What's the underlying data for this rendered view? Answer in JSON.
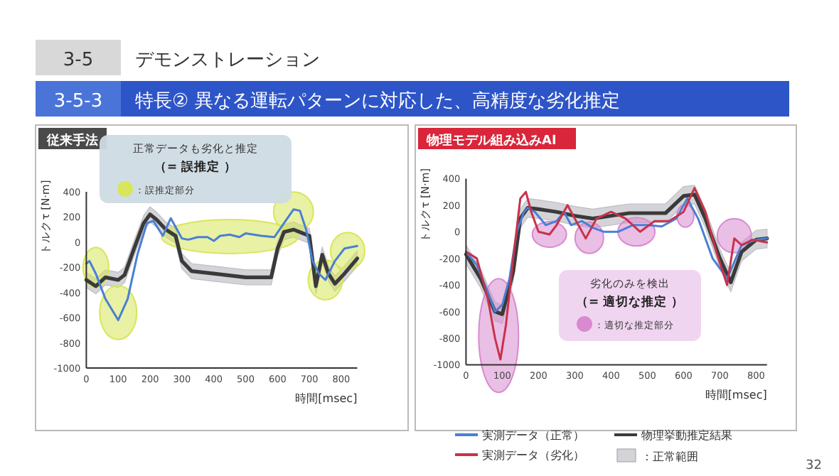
{
  "chart_data": [
    {
      "type": "other",
      "title": "デモンストレーション",
      "subtitle": "特長② 異なる運転パターンに対応した、高精度な劣化推定",
      "annotations": [
        "3-5",
        "3-5-3",
        "32"
      ]
    },
    {
      "type": "line",
      "title": "従来手法",
      "xlabel": "時間[msec]",
      "ylabel": "トルクτ [N·m]",
      "xlim": [
        0,
        850
      ],
      "xticks": [
        0,
        100,
        200,
        300,
        400,
        500,
        600,
        700,
        800
      ],
      "ylim": [
        -1000,
        400
      ],
      "yticks": [
        -1000,
        -800,
        -600,
        -400,
        -200,
        0,
        200,
        400
      ],
      "legend": false,
      "annotations": [
        "正常データも劣化と推定",
        "（= 誤推定 ）",
        "：誤推定部分"
      ],
      "series": [
        {
          "color": "#3a3a3a",
          "x": [
            0,
            30,
            60,
            100,
            120,
            150,
            180,
            200,
            220,
            250,
            280,
            300,
            330,
            400,
            500,
            580,
            600,
            620,
            650,
            700,
            720,
            740,
            760,
            780,
            810,
            850
          ],
          "values": [
            -300,
            -350,
            -280,
            -300,
            -260,
            -50,
            150,
            220,
            180,
            100,
            50,
            -150,
            -230,
            -250,
            -280,
            -280,
            -50,
            80,
            100,
            50,
            -350,
            -100,
            -250,
            -330,
            -250,
            -130
          ],
          "lower": [
            -360,
            -410,
            -340,
            -360,
            -320,
            -110,
            90,
            160,
            120,
            40,
            -10,
            -210,
            -290,
            -310,
            -340,
            -340,
            -110,
            20,
            40,
            -10,
            -410,
            -160,
            -310,
            -390,
            -310,
            -190
          ],
          "upper": [
            -240,
            -290,
            -220,
            -240,
            -200,
            10,
            210,
            280,
            240,
            160,
            110,
            -90,
            -170,
            -190,
            -220,
            -220,
            10,
            140,
            160,
            110,
            -290,
            -40,
            -190,
            -270,
            -190,
            -70
          ]
        },
        {
          "color": "#4a7fd4",
          "x": [
            0,
            10,
            30,
            60,
            100,
            130,
            160,
            190,
            210,
            240,
            265,
            300,
            320,
            350,
            380,
            400,
            420,
            450,
            480,
            500,
            550,
            590,
            620,
            650,
            670,
            690,
            710,
            730,
            750,
            780,
            810,
            850
          ],
          "values": [
            -170,
            -150,
            -250,
            -450,
            -620,
            -450,
            -100,
            150,
            170,
            50,
            190,
            30,
            20,
            40,
            40,
            10,
            50,
            60,
            40,
            70,
            50,
            40,
            150,
            260,
            250,
            100,
            -150,
            -250,
            -300,
            -150,
            -50,
            -30
          ]
        }
      ]
    },
    {
      "type": "line",
      "title": "物理モデル組み込みAI",
      "xlabel": "時間[msec]",
      "ylabel": "トルクτ [N·m]",
      "xlim": [
        0,
        830
      ],
      "xticks": [
        0,
        100,
        200,
        300,
        400,
        500,
        600,
        700,
        800
      ],
      "ylim": [
        -1000,
        400
      ],
      "yticks": [
        -1000,
        -800,
        -600,
        -400,
        -200,
        0,
        200,
        400
      ],
      "legend": "bottom",
      "annotations": [
        "劣化のみを検出",
        "（= 適切な推定 ）",
        "：適切な推定部分",
        "：正常範囲"
      ],
      "series": [
        {
          "name": "物理挙動推定結果",
          "color": "#3a3a3a",
          "x": [
            0,
            40,
            80,
            100,
            130,
            150,
            170,
            200,
            250,
            300,
            350,
            400,
            450,
            500,
            550,
            600,
            630,
            660,
            700,
            730,
            760,
            800,
            830
          ],
          "values": [
            -170,
            -350,
            -600,
            -620,
            -300,
            100,
            180,
            170,
            150,
            120,
            100,
            120,
            140,
            140,
            140,
            270,
            280,
            100,
            -200,
            -380,
            -150,
            -60,
            -50
          ],
          "lower": [
            -240,
            -420,
            -670,
            -690,
            -370,
            30,
            110,
            100,
            80,
            50,
            30,
            50,
            70,
            70,
            70,
            200,
            210,
            30,
            -270,
            -450,
            -220,
            -130,
            -120
          ],
          "upper": [
            -100,
            -280,
            -530,
            -550,
            -230,
            170,
            250,
            240,
            220,
            190,
            170,
            190,
            210,
            210,
            210,
            340,
            350,
            170,
            -130,
            -310,
            -80,
            10,
            20
          ]
        },
        {
          "name": "実測データ（正常）",
          "color": "#4a7fd4",
          "x": [
            0,
            30,
            60,
            80,
            100,
            120,
            140,
            160,
            170,
            190,
            220,
            250,
            270,
            290,
            320,
            350,
            380,
            420,
            460,
            500,
            540,
            580,
            610,
            640,
            680,
            720,
            760,
            800,
            830
          ],
          "values": [
            -150,
            -250,
            -450,
            -600,
            -550,
            -350,
            0,
            150,
            180,
            150,
            50,
            80,
            150,
            50,
            80,
            30,
            0,
            0,
            50,
            50,
            40,
            100,
            250,
            100,
            -200,
            -350,
            -100,
            -60,
            -50
          ]
        },
        {
          "name": "実測データ（劣化）",
          "color": "#c8324a",
          "x": [
            0,
            30,
            60,
            80,
            95,
            110,
            130,
            150,
            165,
            180,
            200,
            230,
            250,
            280,
            300,
            330,
            360,
            400,
            440,
            480,
            520,
            560,
            600,
            630,
            660,
            690,
            720,
            740,
            760,
            790,
            830
          ],
          "values": [
            -150,
            -200,
            -500,
            -800,
            -960,
            -700,
            -200,
            250,
            300,
            150,
            0,
            -20,
            50,
            200,
            100,
            -50,
            100,
            150,
            100,
            0,
            80,
            80,
            150,
            330,
            150,
            -150,
            -400,
            -50,
            -100,
            -60,
            -80
          ]
        }
      ]
    }
  ]
}
